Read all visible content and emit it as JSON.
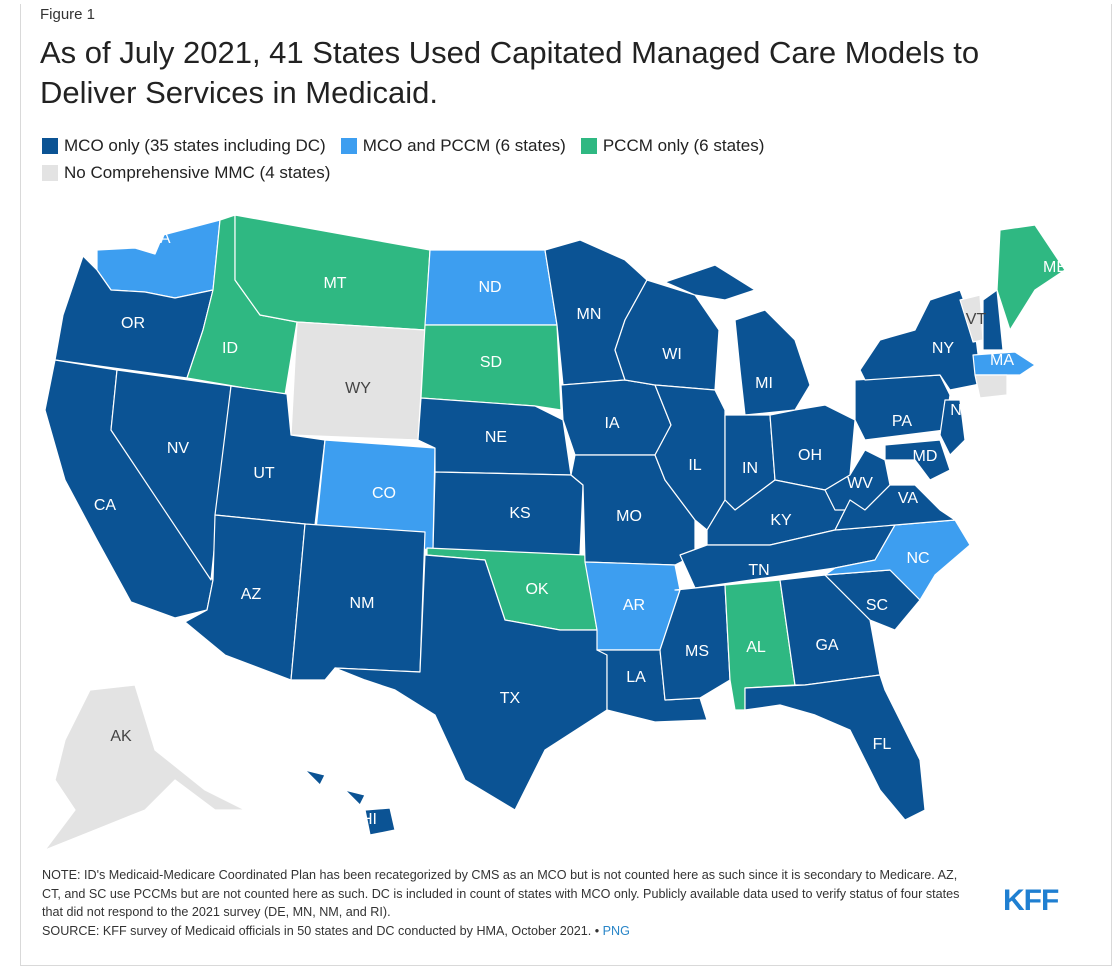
{
  "figure_label": "Figure 1",
  "title": "As of July 2021, 41 States Used Capitated Managed Care Models to Deliver Services in Medicaid.",
  "legend": [
    {
      "label": "MCO only (35 states including DC)",
      "color": "#0b5394"
    },
    {
      "label": "MCO and PCCM (6 states)",
      "color": "#3d9ef0"
    },
    {
      "label": "PCCM only (6 states)",
      "color": "#2fb882"
    },
    {
      "label": "No Comprehensive MMC (4 states)",
      "color": "#e3e3e3"
    }
  ],
  "states": {
    "WA": "MCO and PCCM",
    "OR": "MCO only",
    "CA": "MCO only",
    "NV": "MCO only",
    "ID": "PCCM only",
    "MT": "PCCM only",
    "WY": "No Comprehensive MMC",
    "UT": "MCO only",
    "AZ": "MCO only",
    "CO": "MCO and PCCM",
    "NM": "MCO only",
    "ND": "MCO and PCCM",
    "SD": "PCCM only",
    "NE": "MCO only",
    "KS": "MCO only",
    "OK": "PCCM only",
    "TX": "MCO only",
    "MN": "MCO only",
    "IA": "MCO only",
    "MO": "MCO only",
    "AR": "MCO and PCCM",
    "LA": "MCO only",
    "WI": "MCO only",
    "IL": "MCO only",
    "MS": "MCO only",
    "MI": "MCO only",
    "IN": "MCO only",
    "KY": "MCO only",
    "TN": "MCO only",
    "AL": "PCCM only",
    "OH": "MCO only",
    "WV": "MCO only",
    "VA": "MCO only",
    "NC": "MCO and PCCM",
    "SC": "MCO only",
    "GA": "MCO only",
    "FL": "MCO only",
    "PA": "MCO only",
    "NY": "MCO only",
    "NJ": "MCO only",
    "MD": "MCO only",
    "VT": "No Comprehensive MMC",
    "ME": "PCCM only",
    "MA": "MCO and PCCM",
    "AK": "No Comprehensive MMC",
    "HI": "MCO only",
    "CT": "No Comprehensive MMC"
  },
  "notes": {
    "note": "NOTE: ID's Medicaid-Medicare Coordinated Plan has been recategorized by CMS as an MCO but is not counted here as such since it is secondary to Medicare. AZ, CT, and SC use PCCMs but are not counted here as such. DC is included in count of states with MCO only. Publicly available data used to verify status of four states that did not respond to the 2021 survey (DE, MN, NM, and RI).",
    "source": "SOURCE: KFF survey of Medicaid officials in 50 states and DC conducted by HMA, October 2021. •",
    "png_link": "PNG"
  },
  "logo": "KFF"
}
